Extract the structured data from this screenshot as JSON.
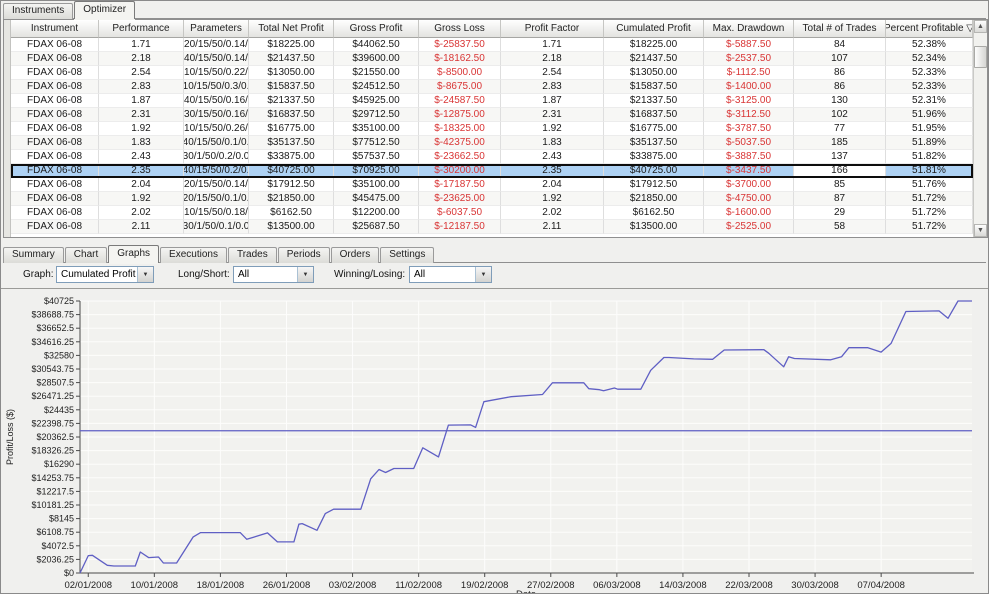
{
  "top_tabs": [
    {
      "label": "Instruments",
      "active": false
    },
    {
      "label": "Optimizer",
      "active": true
    }
  ],
  "table": {
    "columns": [
      "Instrument",
      "Performance",
      "Parameters",
      "Total Net Profit",
      "Gross Profit",
      "Gross Loss",
      "Profit Factor",
      "Cumulated Profit",
      "Max. Drawdown",
      "Total # of Trades",
      "Percent Profitable"
    ],
    "sort_column": "Percent Profitable",
    "sort_indicator": "▽",
    "red_columns": [
      5,
      8
    ],
    "selected_row_index": 9,
    "selected_plain_cell": 9,
    "rows": [
      [
        "FDAX 06-08",
        "1.71",
        "20/15/50/0.14/",
        "$18225.00",
        "$44062.50",
        "$-25837.50",
        "1.71",
        "$18225.00",
        "$-5887.50",
        "84",
        "52.38%"
      ],
      [
        "FDAX 06-08",
        "2.18",
        "40/15/50/0.14/",
        "$21437.50",
        "$39600.00",
        "$-18162.50",
        "2.18",
        "$21437.50",
        "$-2537.50",
        "107",
        "52.34%"
      ],
      [
        "FDAX 06-08",
        "2.54",
        "10/15/50/0.22/",
        "$13050.00",
        "$21550.00",
        "$-8500.00",
        "2.54",
        "$13050.00",
        "$-1112.50",
        "86",
        "52.33%"
      ],
      [
        "FDAX 06-08",
        "2.83",
        "10/15/50/0.3/0.",
        "$15837.50",
        "$24512.50",
        "$-8675.00",
        "2.83",
        "$15837.50",
        "$-1400.00",
        "86",
        "52.33%"
      ],
      [
        "FDAX 06-08",
        "1.87",
        "40/15/50/0.16/",
        "$21337.50",
        "$45925.00",
        "$-24587.50",
        "1.87",
        "$21337.50",
        "$-3125.00",
        "130",
        "52.31%"
      ],
      [
        "FDAX 06-08",
        "2.31",
        "30/15/50/0.16/",
        "$16837.50",
        "$29712.50",
        "$-12875.00",
        "2.31",
        "$16837.50",
        "$-3112.50",
        "102",
        "51.96%"
      ],
      [
        "FDAX 06-08",
        "1.92",
        "10/15/50/0.26/",
        "$16775.00",
        "$35100.00",
        "$-18325.00",
        "1.92",
        "$16775.00",
        "$-3787.50",
        "77",
        "51.95%"
      ],
      [
        "FDAX 06-08",
        "1.83",
        "40/15/50/0.1/0.",
        "$35137.50",
        "$77512.50",
        "$-42375.00",
        "1.83",
        "$35137.50",
        "$-5037.50",
        "185",
        "51.89%"
      ],
      [
        "FDAX 06-08",
        "2.43",
        "30/1/50/0.2/0.0",
        "$33875.00",
        "$57537.50",
        "$-23662.50",
        "2.43",
        "$33875.00",
        "$-3887.50",
        "137",
        "51.82%"
      ],
      [
        "FDAX 06-08",
        "2.35",
        "40/15/50/0.2/0.",
        "$40725.00",
        "$70925.00",
        "$-30200.00",
        "2.35",
        "$40725.00",
        "$-3437.50",
        "166",
        "51.81%"
      ],
      [
        "FDAX 06-08",
        "2.04",
        "20/15/50/0.14/",
        "$17912.50",
        "$35100.00",
        "$-17187.50",
        "2.04",
        "$17912.50",
        "$-3700.00",
        "85",
        "51.76%"
      ],
      [
        "FDAX 06-08",
        "1.92",
        "20/15/50/0.1/0.",
        "$21850.00",
        "$45475.00",
        "$-23625.00",
        "1.92",
        "$21850.00",
        "$-4750.00",
        "87",
        "51.72%"
      ],
      [
        "FDAX 06-08",
        "2.02",
        "10/15/50/0.18/",
        "$6162.50",
        "$12200.00",
        "$-6037.50",
        "2.02",
        "$6162.50",
        "$-1600.00",
        "29",
        "51.72%"
      ],
      [
        "FDAX 06-08",
        "2.11",
        "30/1/50/0.1/0.0",
        "$13500.00",
        "$25687.50",
        "$-12187.50",
        "2.11",
        "$13500.00",
        "$-2525.00",
        "58",
        "51.72%"
      ]
    ],
    "scrollbar": {
      "up_glyph": "▲",
      "down_glyph": "▼"
    }
  },
  "bottom_tabs": [
    {
      "label": "Summary",
      "active": false
    },
    {
      "label": "Chart",
      "active": false
    },
    {
      "label": "Graphs",
      "active": true
    },
    {
      "label": "Executions",
      "active": false
    },
    {
      "label": "Trades",
      "active": false
    },
    {
      "label": "Periods",
      "active": false
    },
    {
      "label": "Orders",
      "active": false
    },
    {
      "label": "Settings",
      "active": false
    }
  ],
  "controls": {
    "graph_label": "Graph:",
    "graph_value": "Cumulated Profit",
    "longshort_label": "Long/Short:",
    "longshort_value": "All",
    "winninglosing_label": "Winning/Losing:",
    "winninglosing_value": "All",
    "dropdown_glyph": "▼"
  },
  "chart_data": {
    "type": "line",
    "title": "",
    "xlabel": "Date",
    "ylabel": "Profit/Loss ($)",
    "line_color": "#5f5fc4",
    "plot_bg": "#f2f2ef",
    "grid_color": "#fdfdfc",
    "axis_color": "#4a4a4a",
    "x_domain": [
      -1,
      107
    ],
    "ylim": [
      0,
      40725
    ],
    "y_tick_step": 2036.25,
    "y_tick_labels": [
      "$0",
      "$2036.25",
      "$4072.5",
      "$6108.75",
      "$8145",
      "$10181.25",
      "$12217.5",
      "$14253.75",
      "$16290",
      "$18326.25",
      "$20362.5",
      "$22398.75",
      "$24435",
      "$26471.25",
      "$28507.5",
      "$30543.75",
      "$32580",
      "$34616.25",
      "$36652.5",
      "$38688.75",
      "$40725"
    ],
    "x_tick_days": [
      0,
      8,
      16,
      24,
      32,
      40,
      48,
      56,
      64,
      72,
      80,
      88,
      96
    ],
    "x_tick_labels": [
      "02/01/2008",
      "10/01/2008",
      "18/01/2008",
      "26/01/2008",
      "03/02/2008",
      "11/02/2008",
      "19/02/2008",
      "27/02/2008",
      "06/03/2008",
      "14/03/2008",
      "22/03/2008",
      "30/03/2008",
      "07/04/2008"
    ],
    "reference_line": 21300,
    "series": [
      {
        "name": "Cumulated Profit",
        "points": [
          [
            -1,
            0
          ],
          [
            0,
            2600
          ],
          [
            0.5,
            2650
          ],
          [
            2.3,
            1150
          ],
          [
            3.1,
            1050
          ],
          [
            5.7,
            1050
          ],
          [
            6.3,
            3150
          ],
          [
            7.3,
            2300
          ],
          [
            8.5,
            2400
          ],
          [
            9.1,
            1500
          ],
          [
            10.7,
            1500
          ],
          [
            12.7,
            5400
          ],
          [
            13.6,
            6050
          ],
          [
            18.4,
            6050
          ],
          [
            19.2,
            5050
          ],
          [
            21.7,
            6000
          ],
          [
            22.9,
            4650
          ],
          [
            24.9,
            4650
          ],
          [
            25.5,
            7300
          ],
          [
            25.9,
            7400
          ],
          [
            27.7,
            6400
          ],
          [
            28.7,
            8900
          ],
          [
            29.7,
            9550
          ],
          [
            33,
            9550
          ],
          [
            34.2,
            14100
          ],
          [
            35.2,
            15500
          ],
          [
            36,
            15050
          ],
          [
            37,
            15640
          ],
          [
            39.4,
            15640
          ],
          [
            40.5,
            18740
          ],
          [
            42.4,
            17390
          ],
          [
            43.6,
            22140
          ],
          [
            46.3,
            22180
          ],
          [
            46.9,
            21800
          ],
          [
            47.9,
            25650
          ],
          [
            51.2,
            26400
          ],
          [
            55,
            26730
          ],
          [
            56.2,
            28480
          ],
          [
            60,
            28480
          ],
          [
            60.6,
            27600
          ],
          [
            61.9,
            27450
          ],
          [
            62.4,
            27300
          ],
          [
            63.7,
            27700
          ],
          [
            64.1,
            27520
          ],
          [
            66.9,
            27520
          ],
          [
            68.1,
            30350
          ],
          [
            69.7,
            32270
          ],
          [
            70.3,
            32270
          ],
          [
            73.3,
            32050
          ],
          [
            75.6,
            32000
          ],
          [
            77,
            33390
          ],
          [
            81.8,
            33430
          ],
          [
            82.4,
            32890
          ],
          [
            84.2,
            30870
          ],
          [
            84.8,
            32370
          ],
          [
            85.5,
            32120
          ],
          [
            89.9,
            31920
          ],
          [
            91.2,
            32370
          ],
          [
            92.1,
            33730
          ],
          [
            94.4,
            33730
          ],
          [
            96,
            33080
          ],
          [
            97.2,
            34380
          ],
          [
            99,
            39150
          ],
          [
            103,
            39250
          ],
          [
            104.1,
            38130
          ],
          [
            105.3,
            40730
          ],
          [
            107,
            40725
          ]
        ]
      }
    ]
  },
  "colors": {
    "negative_text": "#d93535",
    "selected_row_bg": "#aed2f4",
    "selected_row_border": "#0d0d0d"
  }
}
